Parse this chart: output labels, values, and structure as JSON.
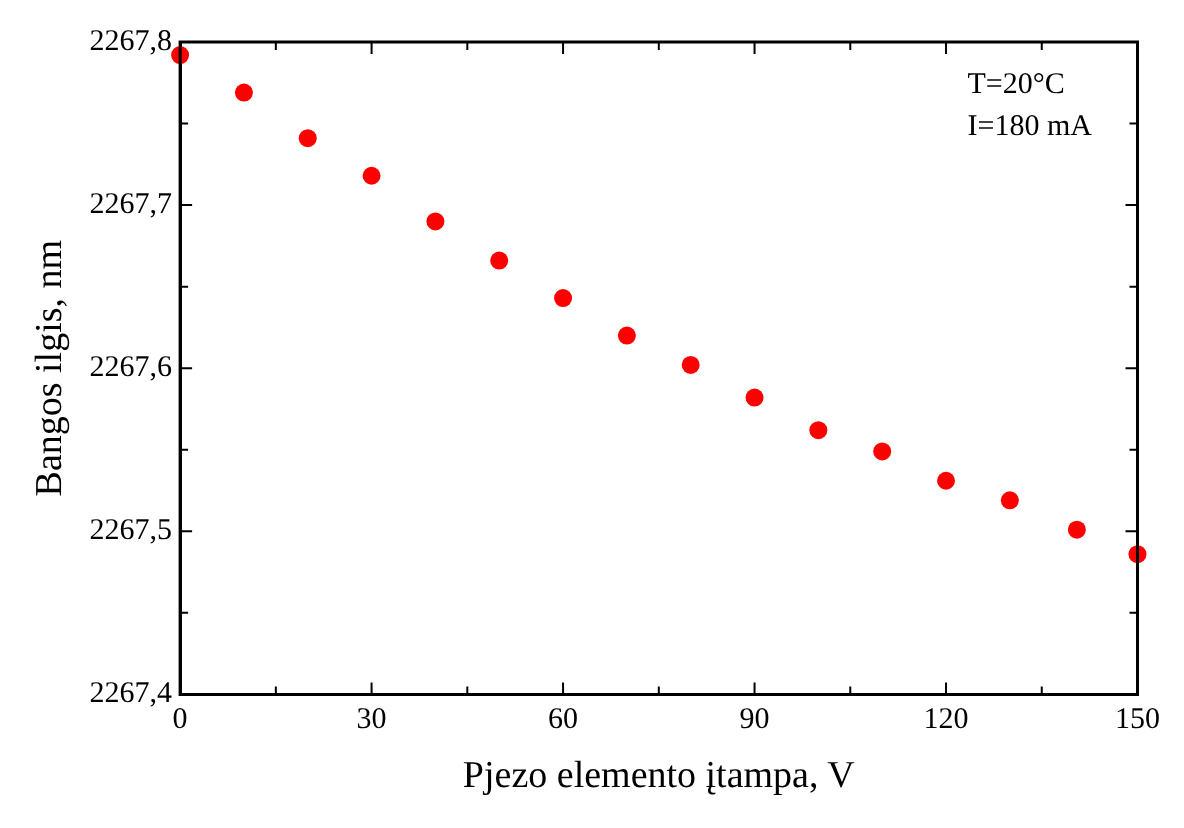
{
  "chart_data": {
    "type": "scatter",
    "xlabel": "Pjezo elemento įtampa, V",
    "ylabel": "Bangos ilgis, nm",
    "x": [
      0,
      10,
      20,
      30,
      40,
      50,
      60,
      70,
      80,
      90,
      100,
      110,
      120,
      130,
      140.5,
      150
    ],
    "series": [
      {
        "color": "#ff0000",
        "values": [
          2267.792,
          2267.769,
          2267.741,
          2267.718,
          2267.69,
          2267.666,
          2267.643,
          2267.62,
          2267.602,
          2267.582,
          2267.562,
          2267.549,
          2267.531,
          2267.519,
          2267.501,
          2267.486
        ]
      }
    ],
    "xlim": [
      0,
      150
    ],
    "xticks": [
      0,
      {
        "value": 15,
        "label": null
      },
      30,
      {
        "value": 45,
        "label": null
      },
      60,
      {
        "value": 75,
        "label": null
      },
      90,
      {
        "value": 105,
        "label": null
      },
      120,
      {
        "value": 135,
        "label": null
      },
      150
    ],
    "ylim": [
      2267.4,
      2267.8
    ],
    "yticks": [
      {
        "value": 2267.4,
        "label": "2267,4"
      },
      {
        "value": 2267.45,
        "label": null
      },
      {
        "value": 2267.5,
        "label": "2267,5"
      },
      {
        "value": 2267.55,
        "label": null
      },
      {
        "value": 2267.6,
        "label": "2267,6"
      },
      {
        "value": 2267.65,
        "label": null
      },
      {
        "value": 2267.7,
        "label": "2267,7"
      },
      {
        "value": 2267.75,
        "label": null
      },
      {
        "value": 2267.8,
        "label": "2267,8"
      }
    ],
    "annotations": [
      "T=20°C",
      "I=180 mA"
    ],
    "grid": false,
    "legend": false,
    "marker": "circle"
  }
}
